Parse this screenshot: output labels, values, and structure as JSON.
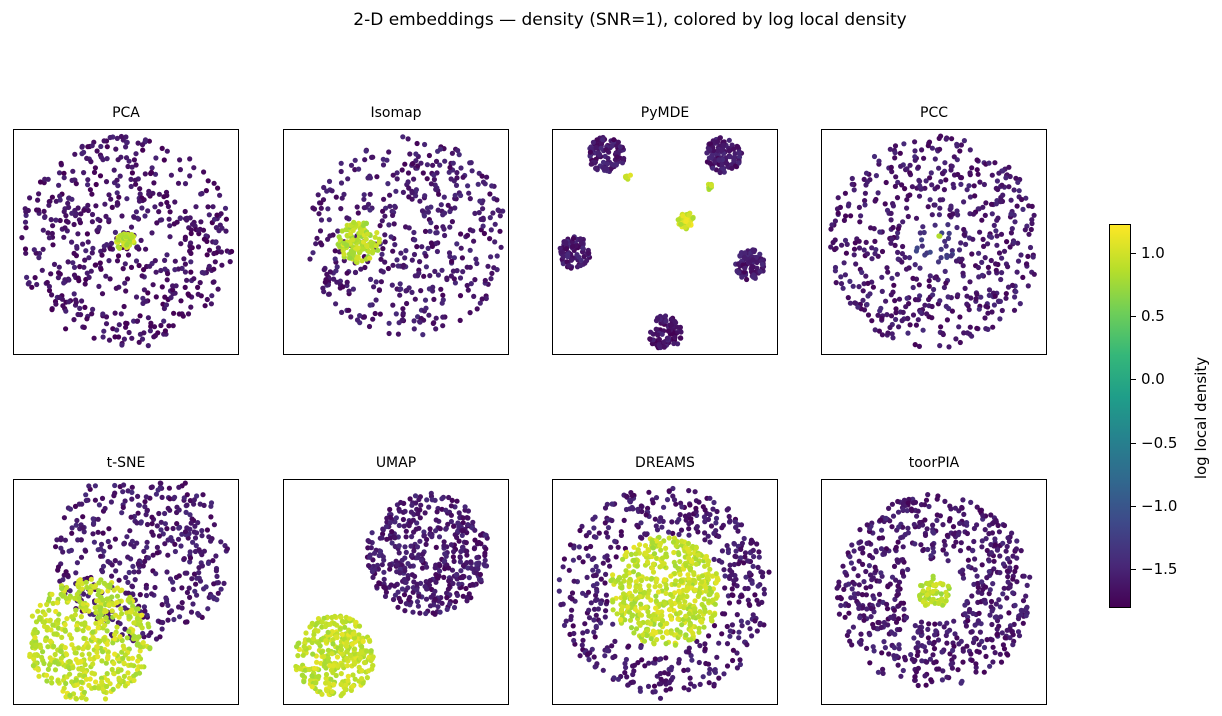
{
  "figure": {
    "title": "2-D embeddings — density (SNR=1), colored by log local density"
  },
  "colorbar": {
    "label": "log local density",
    "range": [
      -1.8,
      1.22
    ],
    "ticks": [
      1.0,
      0.5,
      0.0,
      -0.5,
      -1.0,
      -1.5
    ],
    "tick_labels": [
      "1.0",
      "0.5",
      "0.0",
      "−0.5",
      "−1.0",
      "−1.5"
    ],
    "colormap": "viridis"
  },
  "chart_data": [
    {
      "type": "scatter",
      "title": "PCA",
      "xticks": [],
      "yticks": [],
      "clusters": [
        {
          "shape": "disk",
          "center": [
            0.0,
            0.0
          ],
          "radius": 1.0,
          "n": 560,
          "density": -1.65
        },
        {
          "shape": "disk",
          "center": [
            0.0,
            0.0
          ],
          "radius": 0.09,
          "n": 45,
          "density": 0.95
        }
      ]
    },
    {
      "type": "scatter",
      "title": "Isomap",
      "xticks": [],
      "yticks": [],
      "clusters": [
        {
          "shape": "disk",
          "center": [
            0.1,
            0.05
          ],
          "radius": 0.95,
          "n": 470,
          "density": -1.6
        },
        {
          "shape": "disk",
          "center": [
            -0.35,
            0.0
          ],
          "radius": 0.2,
          "n": 130,
          "density": 0.9
        }
      ]
    },
    {
      "type": "scatter",
      "title": "PyMDE",
      "xticks": [],
      "yticks": [],
      "clusters": [
        {
          "shape": "disk",
          "center": [
            -0.55,
            0.82
          ],
          "radius": 0.17,
          "n": 110,
          "density": -1.6
        },
        {
          "shape": "disk",
          "center": [
            0.55,
            0.82
          ],
          "radius": 0.17,
          "n": 110,
          "density": -1.6
        },
        {
          "shape": "disk",
          "center": [
            -0.85,
            -0.1
          ],
          "radius": 0.15,
          "n": 90,
          "density": -1.6
        },
        {
          "shape": "disk",
          "center": [
            0.8,
            -0.22
          ],
          "radius": 0.15,
          "n": 90,
          "density": -1.6
        },
        {
          "shape": "disk",
          "center": [
            0.0,
            -0.85
          ],
          "radius": 0.16,
          "n": 90,
          "density": -1.65
        },
        {
          "shape": "disk",
          "center": [
            0.2,
            0.2
          ],
          "radius": 0.08,
          "n": 45,
          "density": 1.0
        },
        {
          "shape": "disk",
          "center": [
            -0.35,
            0.62
          ],
          "radius": 0.03,
          "n": 8,
          "density": 0.95
        },
        {
          "shape": "disk",
          "center": [
            0.42,
            0.52
          ],
          "radius": 0.03,
          "n": 8,
          "density": 0.85
        }
      ]
    },
    {
      "type": "scatter",
      "title": "PCC",
      "xticks": [],
      "yticks": [],
      "clusters": [
        {
          "shape": "ring",
          "center": [
            0.0,
            0.0
          ],
          "r_inner": 0.25,
          "r_outer": 1.0,
          "n": 560,
          "density": -1.6
        },
        {
          "shape": "disk",
          "center": [
            0.0,
            0.0
          ],
          "radius": 0.22,
          "n": 25,
          "density": -1.3
        },
        {
          "shape": "disk",
          "center": [
            0.05,
            0.05
          ],
          "radius": 0.02,
          "n": 2,
          "density": 0.95
        }
      ]
    },
    {
      "type": "scatter",
      "title": "t-SNE",
      "xticks": [],
      "yticks": [],
      "clusters": [
        {
          "shape": "disk",
          "center": [
            0.15,
            0.35
          ],
          "radius": 0.82,
          "n": 440,
          "density": -1.6
        },
        {
          "shape": "disk",
          "center": [
            -0.35,
            -0.45
          ],
          "radius": 0.58,
          "n": 520,
          "density": 0.95
        }
      ]
    },
    {
      "type": "scatter",
      "title": "UMAP",
      "xticks": [],
      "yticks": [],
      "clusters": [
        {
          "shape": "disk",
          "center": [
            0.3,
            0.35
          ],
          "radius": 0.58,
          "n": 440,
          "density": -1.6
        },
        {
          "shape": "disk",
          "center": [
            -0.58,
            -0.6
          ],
          "radius": 0.38,
          "n": 320,
          "density": 0.95
        }
      ]
    },
    {
      "type": "scatter",
      "title": "DREAMS",
      "xticks": [],
      "yticks": [],
      "clusters": [
        {
          "shape": "ring",
          "center": [
            0.0,
            0.0
          ],
          "r_inner": 0.55,
          "r_outer": 1.0,
          "n": 480,
          "density": -1.6
        },
        {
          "shape": "disk",
          "center": [
            0.0,
            0.0
          ],
          "radius": 0.52,
          "n": 520,
          "density": 0.95
        }
      ]
    },
    {
      "type": "scatter",
      "title": "toorPIA",
      "xticks": [],
      "yticks": [],
      "clusters": [
        {
          "shape": "ring",
          "center": [
            0.0,
            0.0
          ],
          "r_inner": 0.3,
          "r_outer": 0.92,
          "n": 650,
          "density": -1.6
        },
        {
          "shape": "disk",
          "center": [
            0.0,
            0.0
          ],
          "radius": 0.15,
          "n": 60,
          "density": 0.9
        }
      ]
    }
  ]
}
